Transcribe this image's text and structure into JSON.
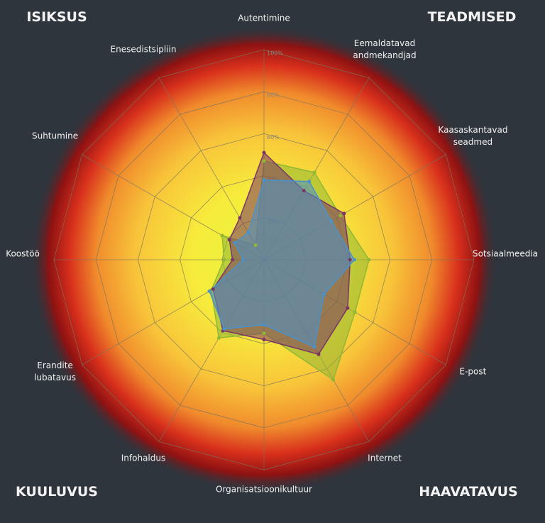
{
  "chart_data": {
    "type": "radar",
    "corner_labels": [
      "ISIKSUS",
      "TEADMISED",
      "KUULUVUS",
      "HAAVATAVUS"
    ],
    "categories": [
      "Autentimine",
      "Eemaldatavad\nandmekandjad",
      "Kaasaskantavad\nseadmed",
      "Sotsiaalmeedia",
      "E-post",
      "Internet",
      "Organisatsioonikultuur",
      "Infohaldus",
      "Erandite\nlubatavus",
      "Koostöö",
      "Suhtumine",
      "Enesedistsipliin"
    ],
    "series": [
      {
        "color": "#8fb833",
        "values": [
          47,
          48,
          42,
          50,
          50,
          66,
          35,
          43,
          29,
          19,
          23,
          8
        ]
      },
      {
        "color": "#7a3566",
        "values": [
          51,
          38,
          44,
          41,
          46,
          52,
          38,
          39,
          28,
          15,
          19,
          23
        ]
      },
      {
        "color": "#4a92cc",
        "values": [
          38,
          43,
          37,
          43,
          33,
          48,
          31,
          38,
          30,
          10,
          16,
          15
        ]
      }
    ],
    "rlim": [
      0,
      100
    ],
    "rticks": [
      {
        "value": 20,
        "label": "20%"
      },
      {
        "value": 40,
        "label": "40%"
      },
      {
        "value": 60,
        "label": "60%"
      },
      {
        "value": 80,
        "label": "80%"
      },
      {
        "value": 100,
        "label": "100%"
      }
    ],
    "grid": true
  }
}
